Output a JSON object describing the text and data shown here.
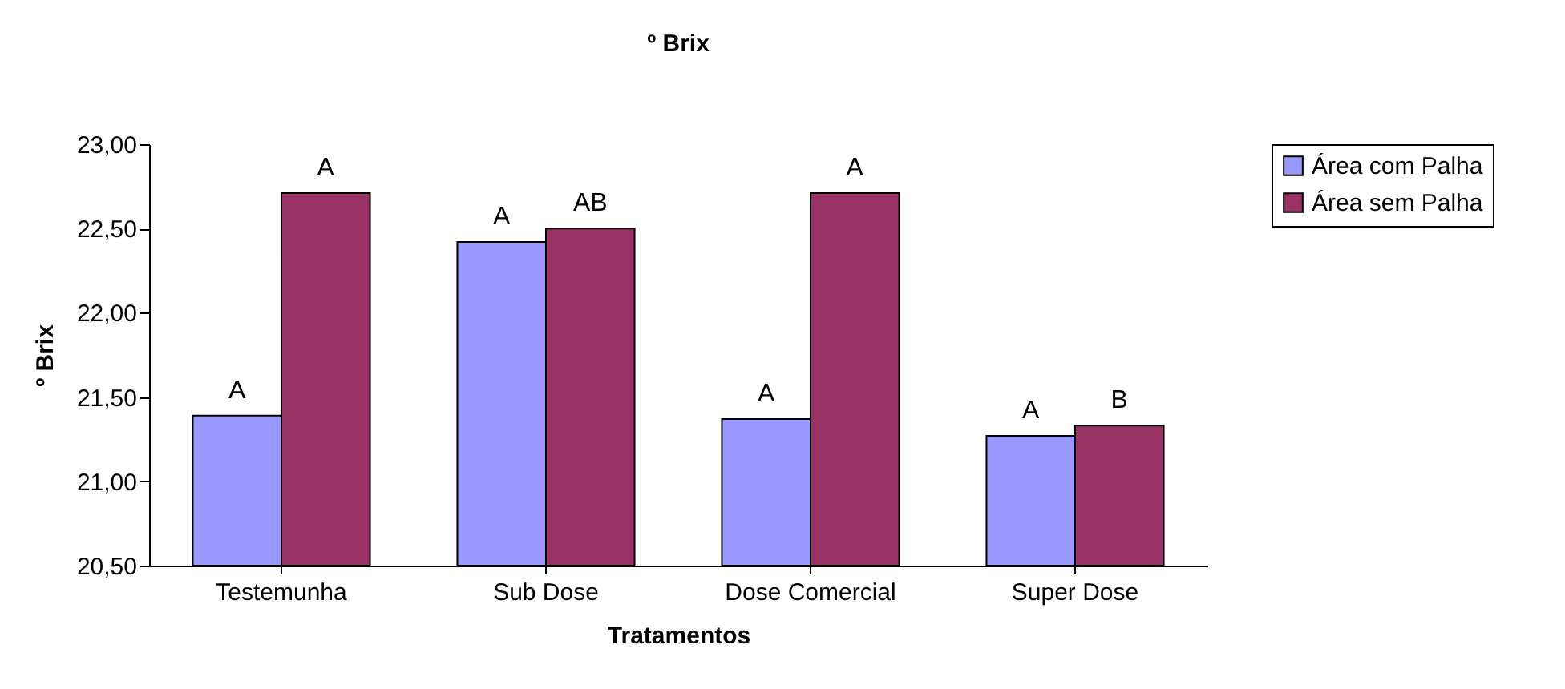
{
  "chart_data": {
    "type": "bar",
    "title": "º Brix",
    "xlabel": "Tratamentos",
    "ylabel": "º Brix",
    "categories": [
      "Testemunha",
      "Sub Dose",
      "Dose Comercial",
      "Super Dose"
    ],
    "series": [
      {
        "name": "Área com Palha",
        "color": "#9999ff",
        "values": [
          21.39,
          22.42,
          21.37,
          21.27
        ],
        "value_labels": [
          "A",
          "A",
          "A",
          "A"
        ]
      },
      {
        "name": "Área sem Palha",
        "color": "#993366",
        "values": [
          22.71,
          22.5,
          22.71,
          21.33
        ],
        "value_labels": [
          "A",
          "AB",
          "A",
          "B"
        ]
      }
    ],
    "ylim": [
      20.5,
      23
    ],
    "yticks": [
      {
        "value": 20.5,
        "label": "20,50"
      },
      {
        "value": 21,
        "label": "21,00"
      },
      {
        "value": 21.5,
        "label": "21,50"
      },
      {
        "value": 22,
        "label": "22,00"
      },
      {
        "value": 22.5,
        "label": "22,50"
      },
      {
        "value": 23,
        "label": "23,00"
      }
    ],
    "grid": false,
    "legend": "right"
  }
}
